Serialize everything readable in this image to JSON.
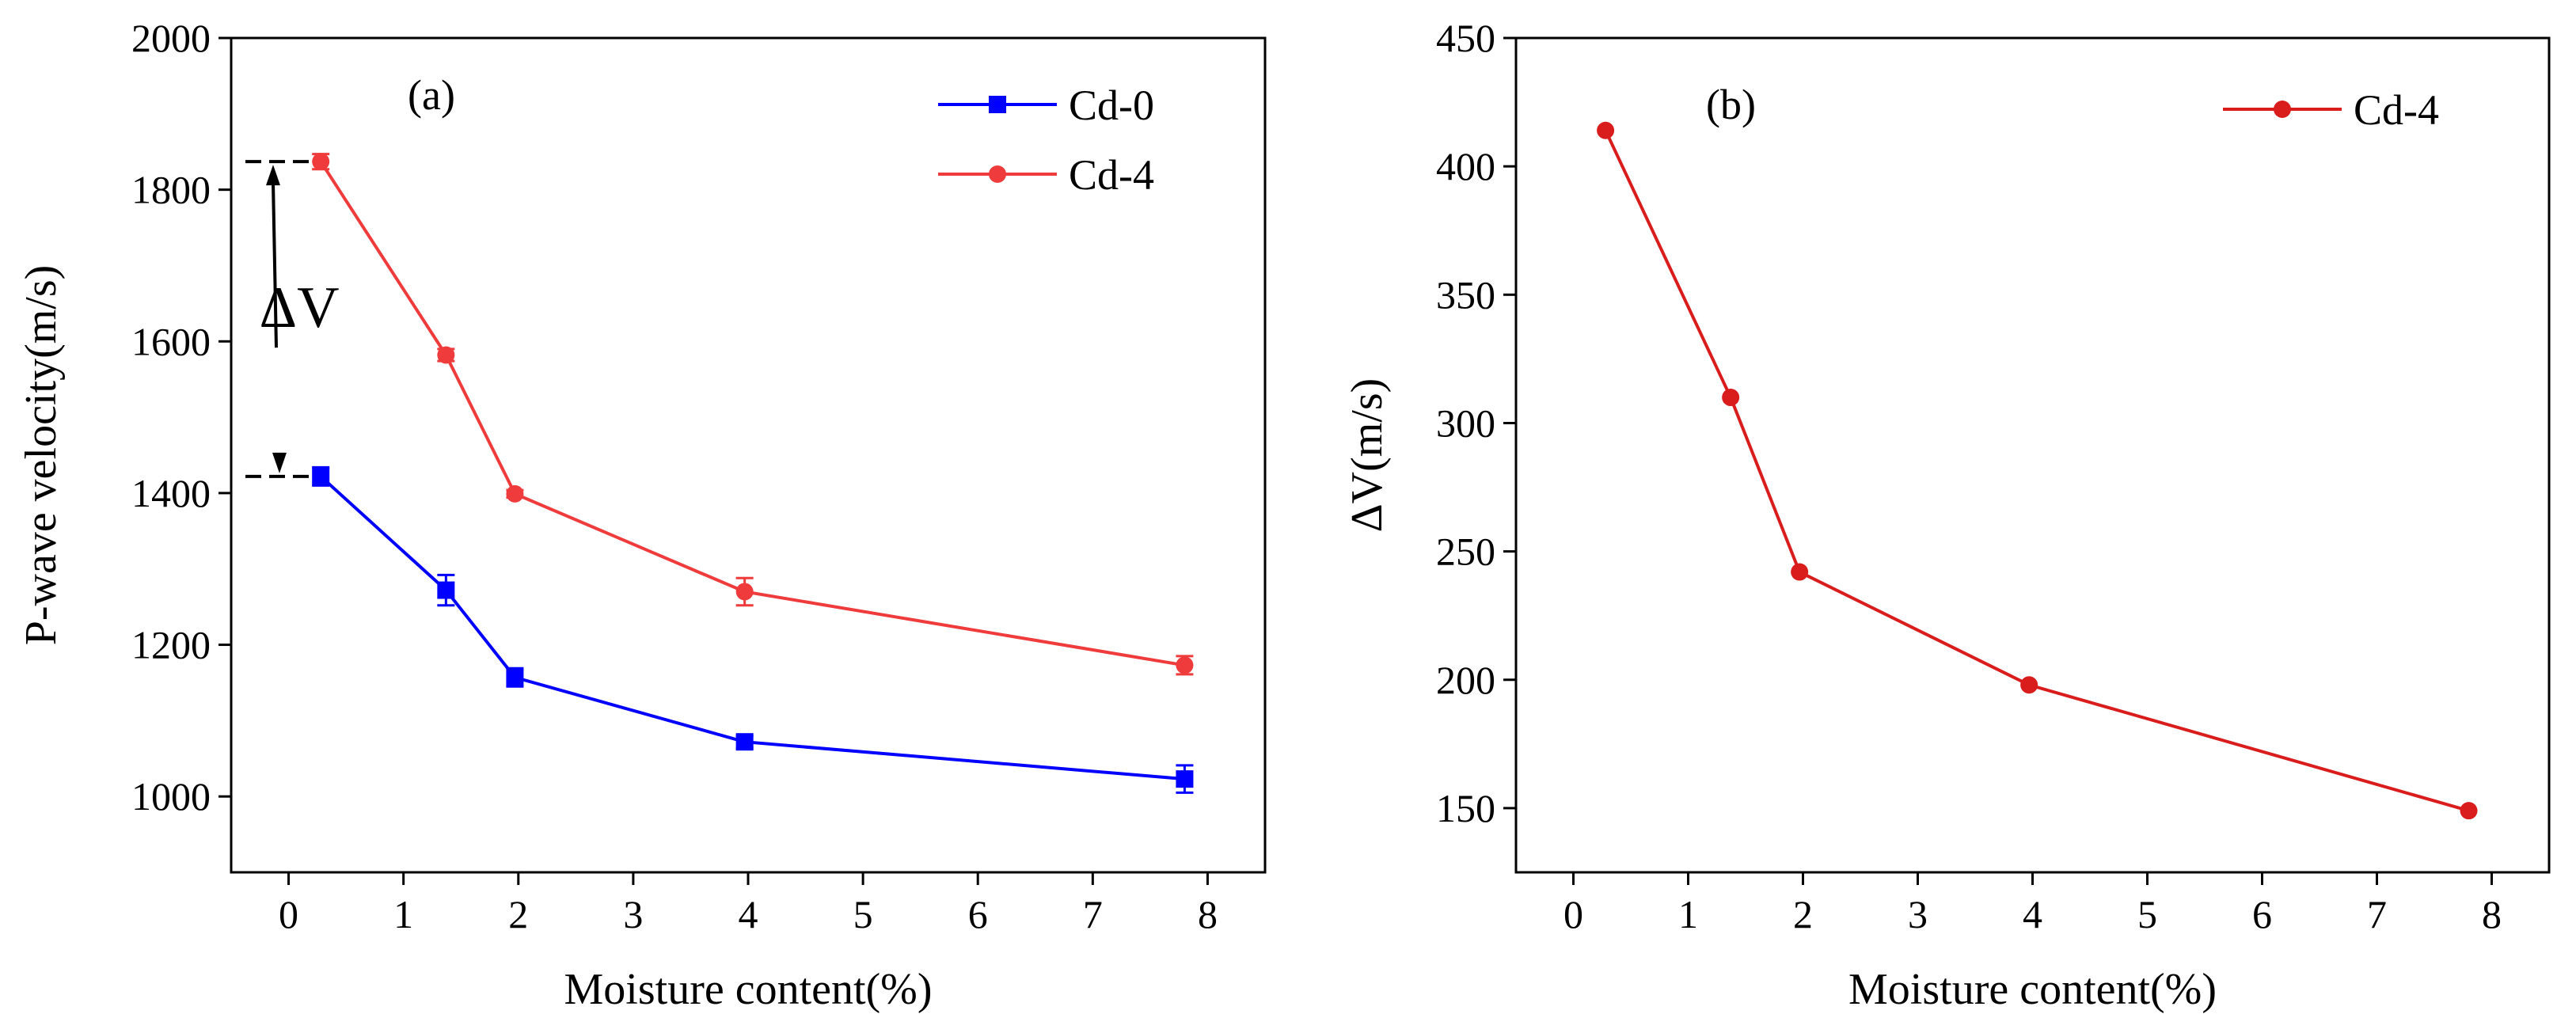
{
  "chart_data": [
    {
      "id": "a",
      "type": "line",
      "panel_label": "(a)",
      "xlabel": "Moisture content(%)",
      "ylabel": "P-wave velocity(m/s)",
      "xlim": [
        -0.5,
        8.5
      ],
      "ylim": [
        900,
        2000
      ],
      "xticks": [
        0,
        1,
        2,
        3,
        4,
        5,
        6,
        7,
        8
      ],
      "yticks": [
        1000,
        1200,
        1400,
        1600,
        1800,
        2000
      ],
      "x": [
        0.28,
        1.37,
        1.97,
        3.97,
        7.8
      ],
      "series": [
        {
          "name": "Cd-0",
          "color": "#0000ff",
          "marker": "square",
          "values": [
            1422,
            1272,
            1157,
            1072,
            1023
          ],
          "errors": [
            12,
            20,
            12,
            8,
            18
          ]
        },
        {
          "name": "Cd-4",
          "color": "#ef3b3b",
          "marker": "circle",
          "values": [
            1837,
            1582,
            1399,
            1270,
            1173
          ],
          "errors": [
            10,
            8,
            5,
            18,
            12
          ]
        }
      ],
      "annotation": {
        "text": "ΔV",
        "from": 1422,
        "to": 1837
      }
    },
    {
      "id": "b",
      "type": "line",
      "panel_label": "(b)",
      "xlabel": "Moisture content(%)",
      "ylabel": "ΔV(m/s)",
      "xlim": [
        -0.5,
        8.5
      ],
      "ylim": [
        125,
        450
      ],
      "xticks": [
        0,
        1,
        2,
        3,
        4,
        5,
        6,
        7,
        8
      ],
      "yticks": [
        150,
        200,
        250,
        300,
        350,
        400,
        450
      ],
      "x": [
        0.28,
        1.37,
        1.97,
        3.97,
        7.8
      ],
      "series": [
        {
          "name": "Cd-4",
          "color": "#d91c1c",
          "marker": "circle",
          "values": [
            414,
            310,
            242,
            198,
            149
          ]
        }
      ]
    }
  ]
}
